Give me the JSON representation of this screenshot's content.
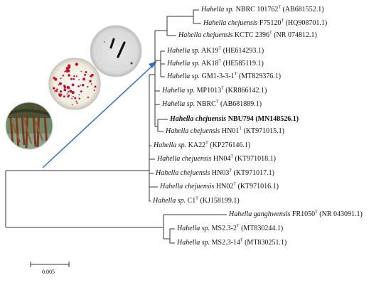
{
  "tree": {
    "leaves": [
      {
        "genus": "Hahella",
        "species": "sp.",
        "strain": "NBRC 101762",
        "type_strain": true,
        "accession": "(AB681552.1)",
        "bold": false
      },
      {
        "genus": "Hahella",
        "species": "chejuensis",
        "strain": "F75120",
        "type_strain": true,
        "accession": "(HQ908701.1)",
        "bold": false
      },
      {
        "genus": "Hahella",
        "species": "chejuensis",
        "strain": "KCTC 2396",
        "type_strain": true,
        "accession": "(NR 074812.1)",
        "bold": false
      },
      {
        "genus": "Hahella",
        "species": "sp.",
        "strain": "AK19",
        "type_strain": true,
        "accession": "(HE614293.1)",
        "bold": false
      },
      {
        "genus": "Hahella",
        "species": "sp.",
        "strain": "AK18",
        "type_strain": true,
        "accession": "(HE585119.1)",
        "bold": false
      },
      {
        "genus": "Hahella",
        "species": "sp.",
        "strain": "GM1-3-3-1",
        "type_strain": true,
        "accession": "(MT829376.1)",
        "bold": false
      },
      {
        "genus": "Hahella",
        "species": "sp.",
        "strain": "MP1013",
        "type_strain": true,
        "accession": "(KR866142.1)",
        "bold": false
      },
      {
        "genus": "Hahella",
        "species": "sp.",
        "strain": "NBRC",
        "type_strain": true,
        "accession": "(AB681889.1)",
        "bold": false
      },
      {
        "genus": "Hahella",
        "species": "chejuensis",
        "strain": "NBU794",
        "type_strain": false,
        "accession": "(MN148526.1)",
        "bold": true
      },
      {
        "genus": "Hahella",
        "species": "chejuensis",
        "strain": "HN01",
        "type_strain": true,
        "accession": "(KT971015.1)",
        "bold": false
      },
      {
        "genus": "Hahella",
        "species": "sp.",
        "strain": "KA22",
        "type_strain": true,
        "accession": "(KP276146.1)",
        "bold": false
      },
      {
        "genus": "Hahella",
        "species": "chejuensis",
        "strain": "HN04",
        "type_strain": true,
        "accession": "(KT971018.1)",
        "bold": false
      },
      {
        "genus": "Hahella",
        "species": "chejuensis",
        "strain": "HN03",
        "type_strain": true,
        "accession": "(KT971017.1)",
        "bold": false
      },
      {
        "genus": "Hahella",
        "species": "chejuensis",
        "strain": "HN02",
        "type_strain": true,
        "accession": "(KT971016.1)",
        "bold": false
      },
      {
        "genus": "Hahella",
        "species": "sp.",
        "strain": "C1",
        "type_strain": true,
        "accession": "(KJ158199.1)",
        "bold": false
      },
      {
        "genus": "Hahella",
        "species": "ganghwensis",
        "strain": "FR1050",
        "type_strain": true,
        "accession": "(NR 043091.1)",
        "bold": false
      },
      {
        "genus": "Hahella",
        "species": "sp.",
        "strain": "MS2.3-2",
        "type_strain": true,
        "accession": "(MT830244.1)",
        "bold": false
      },
      {
        "genus": "Hahella",
        "species": "sp.",
        "strain": "MS2.3-14",
        "type_strain": true,
        "accession": "(MT830251.1)",
        "bold": false
      }
    ],
    "superscript": "T",
    "scale_bar": {
      "label": "0.005"
    }
  },
  "images": [
    {
      "name": "mangrove-roots-photo"
    },
    {
      "name": "red-colonies-plate-photo"
    },
    {
      "name": "gram-stain-micrograph-photo"
    }
  ],
  "colors": {
    "arrow": "#2f6fc6",
    "line": "#333333",
    "colony": "#c8102e"
  }
}
